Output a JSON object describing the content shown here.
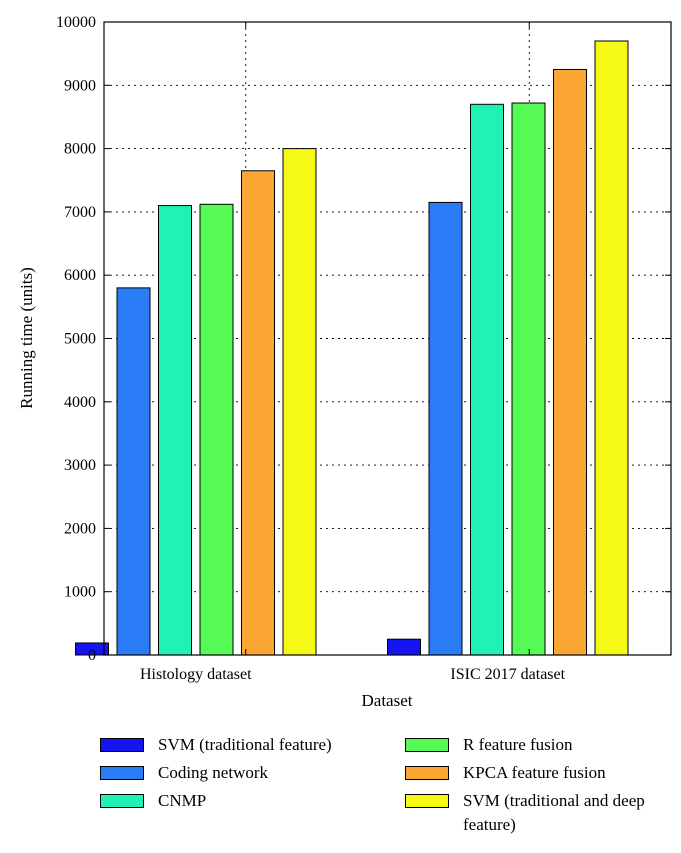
{
  "chart_data": {
    "type": "bar",
    "xlabel": "Dataset",
    "ylabel": "Running time (units)",
    "categories": [
      "Histology dataset",
      "ISIC 2017 dataset"
    ],
    "ylim": [
      0,
      10000
    ],
    "yticks": [
      0,
      1000,
      2000,
      3000,
      4000,
      5000,
      6000,
      7000,
      8000,
      9000,
      10000
    ],
    "grid": true,
    "legend_position": "bottom",
    "series": [
      {
        "name": "SVM (traditional feature)",
        "color": "#1414f0",
        "values": [
          190,
          250
        ]
      },
      {
        "name": "Coding network",
        "color": "#2a7cf6",
        "values": [
          5800,
          7150
        ]
      },
      {
        "name": "CNMP",
        "color": "#1ff2b4",
        "values": [
          7100,
          8700
        ]
      },
      {
        "name": "R feature fusion",
        "color": "#55fa55",
        "values": [
          7120,
          8720
        ]
      },
      {
        "name": "KPCA feature fusion",
        "color": "#fba632",
        "values": [
          7650,
          9250
        ]
      },
      {
        "name": "SVM (traditional and deep feature)",
        "color": "#f4fa14",
        "values": [
          8000,
          9700
        ]
      }
    ]
  }
}
